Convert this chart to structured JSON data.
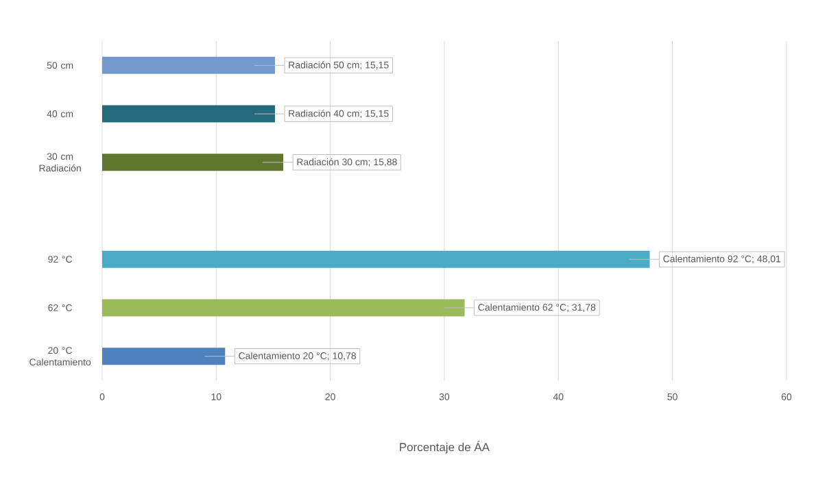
{
  "chart_data": {
    "type": "bar",
    "orientation": "horizontal",
    "xlabel": "Porcentaje de ÁA",
    "categories": [
      "50 cm",
      "40 cm",
      "30 cm Radiación",
      null,
      "92 °C",
      "62 °C",
      "20 °C Calentamiento"
    ],
    "values": [
      15.15,
      15.15,
      15.88,
      null,
      48.01,
      31.78,
      10.78
    ],
    "colors": [
      "#7399cf",
      "#256a7a",
      "#5f7530",
      null,
      "#4bacc6",
      "#9bbb59",
      "#4f81bd"
    ],
    "value_labels": [
      "Radiación 50 cm; 15,15",
      "Radiación 40 cm; 15,15",
      "Radiación 30 cm; 15,88",
      null,
      "Calentamiento 92 °C; 48,01",
      "Calentamiento 62 °C; 31,78",
      "Calentamiento 20 °C; 10,78"
    ],
    "xlim": [
      0,
      60
    ],
    "xticks": [
      0,
      10,
      20,
      30,
      40,
      50,
      60
    ],
    "grid": "x"
  }
}
